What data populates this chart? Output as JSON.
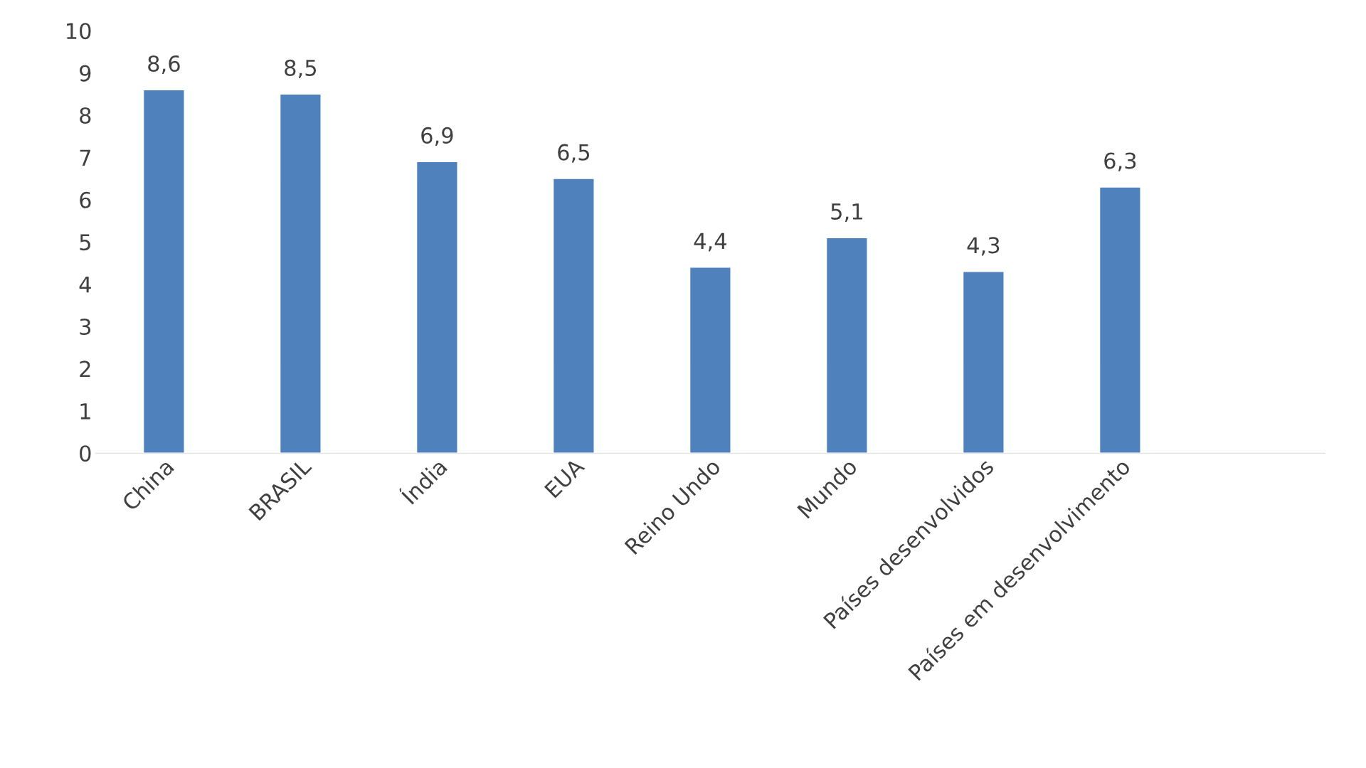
{
  "chart_data": {
    "type": "bar",
    "categories": [
      "China",
      "BRASIL",
      "Índia",
      "EUA",
      "Reino Undo",
      "Mundo",
      "Países desenvolvidos",
      "Países em desenvolvimento",
      null
    ],
    "values": [
      8.6,
      8.5,
      6.9,
      6.5,
      4.4,
      5.1,
      4.3,
      6.3,
      null
    ],
    "value_labels": [
      "8,6",
      "8,5",
      "6,9",
      "6,5",
      "4,4",
      "5,1",
      "4,3",
      "6,3",
      null
    ],
    "color": "#4f81bd",
    "ylim": [
      0,
      10
    ],
    "yticks": [
      0,
      1,
      2,
      3,
      4,
      5,
      6,
      7,
      8,
      9,
      10
    ],
    "grid": false,
    "legend": false
  }
}
